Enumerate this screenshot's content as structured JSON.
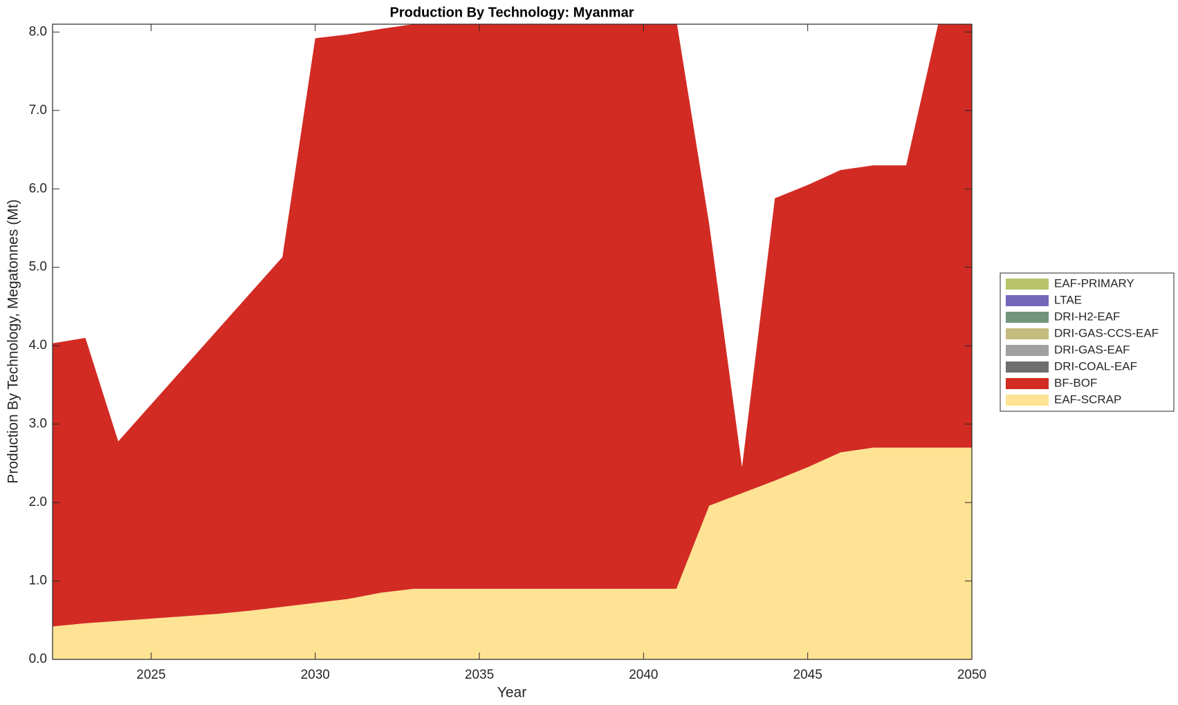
{
  "chart_data": {
    "type": "stacked_area",
    "title": "Production By Technology: Myanmar",
    "xlabel": "Year",
    "ylabel": "Production By Technology, Megatonnes (Mt)",
    "x": [
      2022,
      2023,
      2024,
      2025,
      2026,
      2027,
      2028,
      2029,
      2030,
      2031,
      2032,
      2033,
      2034,
      2035,
      2036,
      2037,
      2038,
      2039,
      2040,
      2041,
      2042,
      2043,
      2044,
      2045,
      2046,
      2047,
      2048,
      2049,
      2050
    ],
    "xlim": [
      2022,
      2050
    ],
    "xticks": [
      2025,
      2030,
      2035,
      2040,
      2045,
      2050
    ],
    "ylim": [
      0,
      8.1
    ],
    "yticks": [
      {
        "value": 0,
        "label": "0.0"
      },
      {
        "value": 1,
        "label": "1.0"
      },
      {
        "value": 2,
        "label": "2.0"
      },
      {
        "value": 3,
        "label": "3.0"
      },
      {
        "value": 4,
        "label": "4.0"
      },
      {
        "value": 5,
        "label": "5.0"
      },
      {
        "value": 6,
        "label": "6.0"
      },
      {
        "value": 7,
        "label": "7.0"
      },
      {
        "value": 8,
        "label": "8.0"
      }
    ],
    "legend": "right",
    "series": [
      {
        "name": "EAF-SCRAP",
        "color": "#fde393",
        "values": [
          0.42,
          0.46,
          0.49,
          0.52,
          0.55,
          0.58,
          0.62,
          0.67,
          0.72,
          0.77,
          0.85,
          0.9,
          0.9,
          0.9,
          0.9,
          0.9,
          0.9,
          0.9,
          0.9,
          0.9,
          1.96,
          2.12,
          2.28,
          2.45,
          2.64,
          2.7,
          2.7,
          2.7,
          2.7
        ]
      },
      {
        "name": "BF-BOF",
        "color": "#d22b24",
        "values": [
          3.61,
          3.64,
          2.29,
          2.73,
          3.17,
          3.61,
          4.04,
          4.46,
          7.2,
          7.2,
          7.19,
          7.2,
          7.6,
          7.6,
          7.6,
          7.6,
          7.6,
          7.6,
          7.6,
          7.25,
          3.59,
          0.33,
          3.6,
          3.6,
          3.6,
          3.6,
          3.6,
          5.45,
          5.8
        ]
      },
      {
        "name": "DRI-COAL-EAF",
        "color": "#6e6e6e",
        "values": [
          0,
          0,
          0,
          0,
          0,
          0,
          0,
          0,
          0,
          0,
          0,
          0,
          0,
          0,
          0,
          0,
          0,
          0,
          0,
          0,
          0,
          0,
          0,
          0,
          0,
          0,
          0,
          0,
          0
        ]
      },
      {
        "name": "DRI-GAS-EAF",
        "color": "#a0a0a0",
        "values": [
          0,
          0,
          0,
          0,
          0,
          0,
          0,
          0,
          0,
          0,
          0,
          0,
          0,
          0,
          0,
          0,
          0,
          0,
          0,
          0,
          0,
          0,
          0,
          0,
          0,
          0,
          0,
          0,
          0
        ]
      },
      {
        "name": "DRI-GAS-CCS-EAF",
        "color": "#c4bc7e",
        "values": [
          0,
          0,
          0,
          0,
          0,
          0,
          0,
          0,
          0,
          0,
          0,
          0,
          0,
          0,
          0,
          0,
          0,
          0,
          0,
          0,
          0,
          0,
          0,
          0,
          0,
          0,
          0,
          0,
          0
        ]
      },
      {
        "name": "DRI-H2-EAF",
        "color": "#739479",
        "values": [
          0,
          0,
          0,
          0,
          0,
          0,
          0,
          0,
          0,
          0,
          0,
          0,
          0,
          0,
          0,
          0,
          0,
          0,
          0,
          0,
          0,
          0,
          0,
          0,
          0,
          0,
          0,
          0,
          0
        ]
      },
      {
        "name": "LTAE",
        "color": "#7466ba",
        "values": [
          0,
          0,
          0,
          0,
          0,
          0,
          0,
          0,
          0,
          0,
          0,
          0,
          0,
          0,
          0,
          0,
          0,
          0,
          0,
          0,
          0,
          0,
          0,
          0,
          0,
          0,
          0,
          0,
          0
        ]
      },
      {
        "name": "EAF-PRIMARY",
        "color": "#b9c46a",
        "values": [
          0,
          0,
          0,
          0,
          0,
          0,
          0,
          0,
          0,
          0,
          0,
          0,
          0,
          0,
          0,
          0,
          0,
          0,
          0,
          0,
          0,
          0,
          0,
          0,
          0,
          0,
          0,
          0,
          0
        ]
      }
    ]
  }
}
